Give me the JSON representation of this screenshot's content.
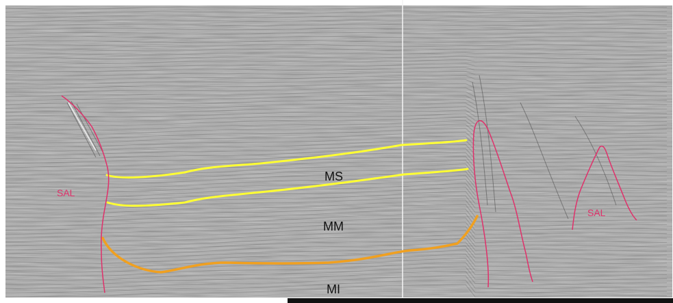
{
  "section": {
    "labels": {
      "salt_left": "SAL",
      "salt_mid": "SAL",
      "salt_right": "SAL",
      "unit_upper": "MS",
      "unit_middle": "MM",
      "unit_lower": "MI"
    },
    "horizons": [
      {
        "id": "upper",
        "color": "#ffff33"
      },
      {
        "id": "middle",
        "color": "#ffff33"
      },
      {
        "id": "base",
        "color": "#f0a020"
      }
    ],
    "colors": {
      "salt_outline": "#e0306a",
      "background": "#8a8a8a"
    }
  }
}
